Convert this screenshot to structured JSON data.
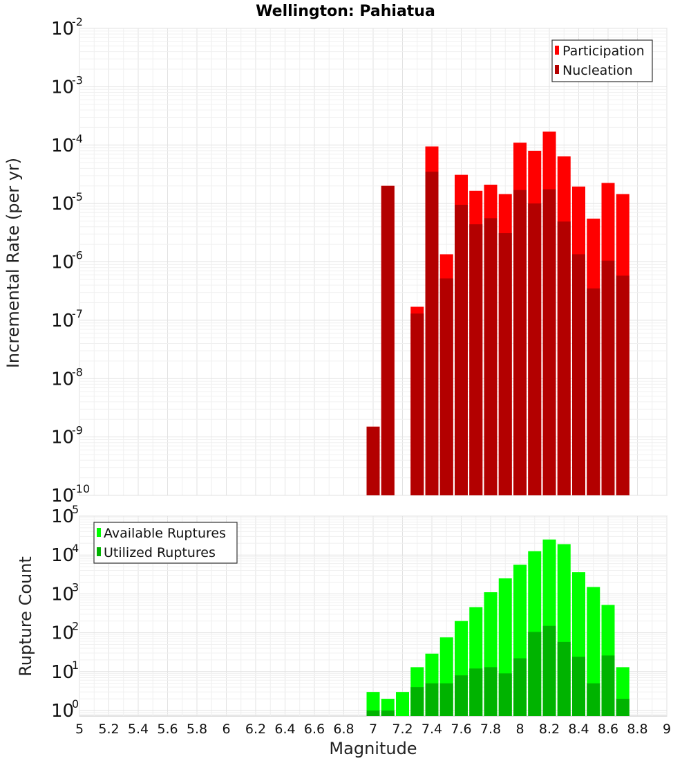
{
  "chart_data": [
    {
      "type": "bar",
      "title": "Wellington: Pahiatua",
      "ylabel": "Incremental Rate (per yr)",
      "xlabel": "",
      "xlim": [
        5,
        9
      ],
      "ylim": [
        1e-10,
        0.01
      ],
      "yscale": "log",
      "grid": true,
      "legend_position": "top-right",
      "x": [
        7.0,
        7.1,
        7.3,
        7.4,
        7.5,
        7.6,
        7.7,
        7.8,
        7.9,
        8.0,
        8.1,
        8.2,
        8.3,
        8.4,
        8.5,
        8.6,
        8.7
      ],
      "series": [
        {
          "name": "Participation",
          "color": "#ff0000",
          "values": [
            1.5e-09,
            2e-05,
            1.7e-07,
            9.5e-05,
            1.35e-06,
            3.1e-05,
            1.65e-05,
            2.1e-05,
            1.45e-05,
            0.00011,
            8e-05,
            0.00017,
            6.4e-05,
            1.95e-05,
            5.5e-06,
            2.25e-05,
            1.45e-05
          ]
        },
        {
          "name": "Nucleation",
          "color": "#b30000",
          "values": [
            1.5e-09,
            2e-05,
            1.3e-07,
            3.5e-05,
            5.2e-07,
            9.5e-06,
            4.4e-06,
            5.6e-06,
            3.1e-06,
            1.7e-05,
            1e-05,
            1.75e-05,
            4.9e-06,
            1.35e-06,
            3.5e-07,
            1.05e-06,
            5.8e-07
          ]
        }
      ]
    },
    {
      "type": "bar",
      "title": "",
      "ylabel": "Rupture Count",
      "xlabel": "Magnitude",
      "xlim": [
        5,
        9
      ],
      "ylim": [
        0.72,
        100000.0
      ],
      "yscale": "log",
      "grid": true,
      "legend_position": "top-left",
      "x": [
        7.0,
        7.1,
        7.2,
        7.3,
        7.4,
        7.5,
        7.6,
        7.7,
        7.8,
        7.9,
        8.0,
        8.1,
        8.2,
        8.3,
        8.4,
        8.5,
        8.6,
        8.7
      ],
      "series": [
        {
          "name": "Available Ruptures",
          "color": "#00ff00",
          "values": [
            3,
            2,
            3,
            13,
            29,
            76,
            200,
            455,
            1100,
            2500,
            5600,
            12500,
            25000,
            19000,
            3600,
            1500,
            520,
            13
          ]
        },
        {
          "name": "Utilized Ruptures",
          "color": "#00b300",
          "values": [
            1,
            1,
            0,
            4,
            5,
            5,
            8,
            12,
            13,
            9,
            22,
            105,
            150,
            58,
            24,
            5,
            26,
            2
          ]
        }
      ]
    }
  ],
  "x_ticks": [
    "5",
    "5.2",
    "5.4",
    "5.6",
    "5.8",
    "6",
    "6.2",
    "6.4",
    "6.6",
    "6.8",
    "7",
    "7.2",
    "7.4",
    "7.6",
    "7.8",
    "8",
    "8.2",
    "8.4",
    "8.6",
    "8.8",
    "9"
  ],
  "top_y_ticks": [
    "-10",
    "-9",
    "-8",
    "-7",
    "-6",
    "-5",
    "-4",
    "-3",
    "-2"
  ],
  "bottom_y_ticks": [
    "0",
    "1",
    "2",
    "3",
    "4",
    "5"
  ],
  "y_tick_base": "10"
}
